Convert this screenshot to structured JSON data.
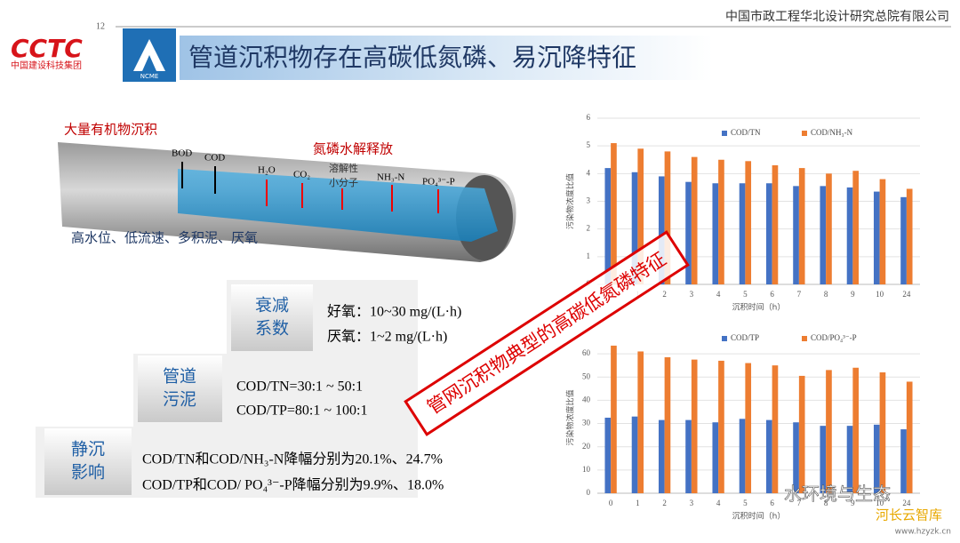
{
  "header": {
    "company": "中国市政工程华北设计研究总院有限公司",
    "page_number": "12",
    "logo_left": "CCTC",
    "logo_left_sub": "中国建设科技集团",
    "logo_right": "NCME",
    "title": "管道沉积物存在高碳低氮磷、易沉降特征"
  },
  "diagram": {
    "deposit": "大量有机物沉积",
    "release": "氮磷水解释放",
    "down": [
      "BOD",
      "COD"
    ],
    "up": [
      "H₂O",
      "CO₂",
      "溶解性",
      "小分子",
      "NH₃-N",
      "PO₄³⁻-P"
    ],
    "conditions": "高水位、低流速、多积泥、厌氧"
  },
  "steps": [
    {
      "label": [
        "衰减",
        "系数"
      ],
      "lines": [
        "好氧：10~30 mg/(L·h)",
        "厌氧：1~2 mg/(L·h)"
      ]
    },
    {
      "label": [
        "管道",
        "污泥"
      ],
      "lines": [
        "COD/TN=30:1 ~ 50:1",
        "COD/TP=80:1 ~ 100:1"
      ]
    },
    {
      "label": [
        "静沉",
        "影响"
      ],
      "lines": [
        "COD/TN和COD/NH₃-N降幅分别为20.1%、24.7%",
        "COD/TP和COD/ PO₄³⁻-P降幅分别为9.9%、18.0%"
      ]
    }
  ],
  "stamp": "管网沉积物典型的高碳低氮磷特征",
  "watermark": {
    "name": "水环境与生态",
    "site": "河长云智库",
    "url": "www.hzyzk.cn"
  },
  "chart_data": [
    {
      "type": "bar",
      "y_label": "污染物浓度比值",
      "x_label": "沉积时间（h）",
      "categories": [
        "0",
        "1",
        "2",
        "3",
        "4",
        "5",
        "6",
        "7",
        "8",
        "9",
        "10",
        "24"
      ],
      "series": [
        {
          "name": "COD/TN",
          "color": "#4472c4",
          "values": [
            4.2,
            4.05,
            3.9,
            3.7,
            3.65,
            3.65,
            3.65,
            3.55,
            3.55,
            3.5,
            3.35,
            3.15
          ]
        },
        {
          "name": "COD/NH₃-N",
          "color": "#ed7d31",
          "values": [
            5.1,
            4.9,
            4.8,
            4.6,
            4.5,
            4.45,
            4.3,
            4.2,
            4.0,
            4.1,
            3.8,
            3.45
          ]
        }
      ],
      "ylim": [
        0,
        6
      ],
      "yticks": [
        0,
        1,
        2,
        3,
        4,
        5,
        6
      ],
      "grid": true
    },
    {
      "type": "bar",
      "y_label": "污染物浓度比值",
      "x_label": "沉积时间（h）",
      "categories": [
        "0",
        "1",
        "2",
        "3",
        "4",
        "5",
        "6",
        "7",
        "8",
        "9",
        "10",
        "24"
      ],
      "series": [
        {
          "name": "COD/TP",
          "color": "#4472c4",
          "values": [
            32.5,
            33,
            31.5,
            31.5,
            30.5,
            32,
            31.5,
            30.5,
            29,
            29,
            29.5,
            27.5
          ]
        },
        {
          "name": "COD/PO₄³⁻-P",
          "color": "#ed7d31",
          "values": [
            63.5,
            61,
            58.5,
            57.5,
            57,
            56,
            55,
            50.5,
            53,
            54,
            52,
            48
          ]
        }
      ],
      "ylim": [
        0,
        65
      ],
      "yticks": [
        0,
        10,
        20,
        30,
        40,
        50,
        60
      ],
      "grid": true
    }
  ]
}
